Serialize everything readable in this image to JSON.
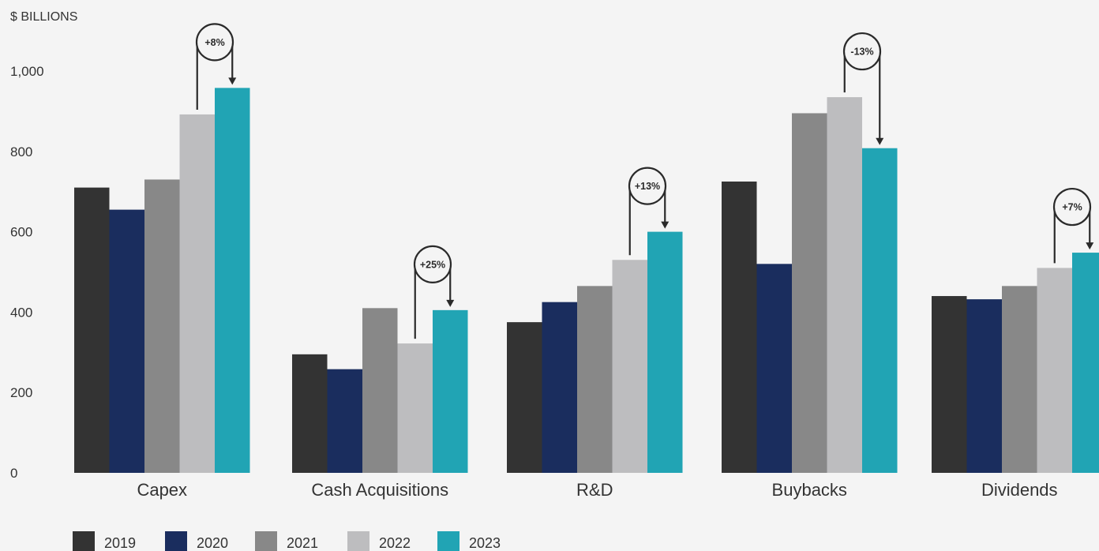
{
  "chart_data": {
    "type": "bar",
    "ylabel": "$ BILLIONS",
    "ylim": [
      0,
      1000
    ],
    "yticks": [
      "0",
      "200",
      "400",
      "600",
      "800",
      "1,000"
    ],
    "categories": [
      "Capex",
      "Cash Acquisitions",
      "R&D",
      "Buybacks",
      "Dividends"
    ],
    "series": [
      {
        "name": "2019",
        "color": "#333333",
        "values": [
          710,
          295,
          375,
          725,
          440
        ]
      },
      {
        "name": "2020",
        "color": "#1a2d5e",
        "values": [
          655,
          258,
          425,
          520,
          432
        ]
      },
      {
        "name": "2021",
        "color": "#888888",
        "values": [
          730,
          410,
          465,
          895,
          465
        ]
      },
      {
        "name": "2022",
        "color": "#bdbdbf",
        "values": [
          892,
          322,
          530,
          935,
          510
        ]
      },
      {
        "name": "2023",
        "color": "#21a4b4",
        "values": [
          958,
          405,
          600,
          808,
          548
        ]
      }
    ],
    "annotations": [
      "+8%",
      "+25%",
      "+13%",
      "-13%",
      "+7%"
    ],
    "grid": false,
    "legend": "bottom-left"
  }
}
